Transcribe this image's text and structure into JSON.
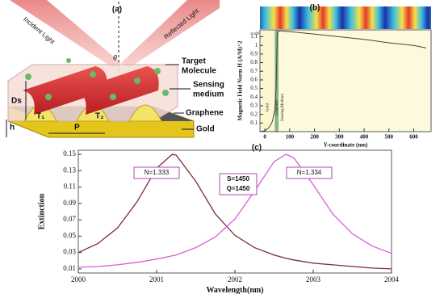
{
  "diagram": {
    "label": "(a)",
    "incident": "Incident Light",
    "reflected": "Reflected Light",
    "angle": "θ",
    "target": [
      "Target",
      "Molecule"
    ],
    "sensing": [
      "Sensing",
      "medium"
    ],
    "graphene": "Graphene",
    "gold": "Gold",
    "ds": "Ds",
    "h": "h",
    "t1": "T₁",
    "t2": "T₂",
    "p": "P"
  },
  "chart_data": [
    {
      "type": "line",
      "label": "(b)",
      "y_label": "Magnetic Field Norm H (A/M)^2",
      "y_scale_label": "×10⁶",
      "x_label": "Y-coordinate (nm)",
      "x": [
        -20,
        0,
        10,
        20,
        30,
        40,
        45,
        50,
        60,
        100,
        200,
        300,
        400,
        500,
        600,
        650
      ],
      "series": [
        {
          "color": "#444444",
          "values": [
            0,
            0.01,
            0.03,
            0.06,
            0.12,
            0.25,
            0.5,
            1.15,
            1.17,
            1.16,
            1.13,
            1.1,
            1.07,
            1.03,
            1.0,
            0.97
          ]
        }
      ],
      "regions": [
        {
          "name": "Gold",
          "xrange": [
            -20,
            40
          ],
          "color": "#fbf6d0"
        },
        {
          "name": "Graphene",
          "xrange": [
            40,
            55
          ],
          "color": "#86b683"
        },
        {
          "name": "Sensing Medium",
          "xrange": [
            55,
            670
          ],
          "color": "#fdf9dc"
        }
      ],
      "xlim": [
        -20,
        670
      ],
      "ylim": [
        0,
        1.18
      ],
      "xticks": [
        0,
        100,
        200,
        300,
        400,
        500,
        600
      ],
      "yticks": [
        0.1,
        0.2,
        0.3,
        0.4,
        0.5,
        0.6,
        0.7,
        0.8,
        0.9,
        1,
        1.1
      ]
    },
    {
      "type": "line",
      "label": "(c)",
      "y_label": "Extinction",
      "x_label": "Wavelength(nm)",
      "x": [
        2000,
        2000.25,
        2000.5,
        2000.75,
        2001,
        2001.2,
        2001.25,
        2001.5,
        2001.75,
        2002,
        2002.25,
        2002.5,
        2002.65,
        2002.75,
        2003,
        2003.25,
        2003.5,
        2003.75,
        2004
      ],
      "series": [
        {
          "name": "N=1.333",
          "color": "#7a2c3e",
          "values": [
            0.03,
            0.041,
            0.06,
            0.092,
            0.133,
            0.15,
            0.149,
            0.117,
            0.077,
            0.051,
            0.036,
            0.027,
            0.023,
            0.021,
            0.017,
            0.015,
            0.013,
            0.011,
            0.01
          ]
        },
        {
          "name": "N=1.334",
          "color": "#d65fd6",
          "values": [
            0.012,
            0.013,
            0.015,
            0.018,
            0.022,
            0.026,
            0.027,
            0.036,
            0.049,
            0.071,
            0.105,
            0.141,
            0.15,
            0.146,
            0.113,
            0.077,
            0.053,
            0.038,
            0.029
          ]
        }
      ],
      "annotations": [
        "S=1450",
        "Q=1450"
      ],
      "xlim": [
        2000,
        2004
      ],
      "ylim": [
        0.005,
        0.155
      ],
      "xticks": [
        2000,
        2001,
        2002,
        2003,
        2004
      ],
      "yticks": [
        0.01,
        0.03,
        0.05,
        0.07,
        0.09,
        0.11,
        0.13,
        0.15
      ]
    }
  ]
}
